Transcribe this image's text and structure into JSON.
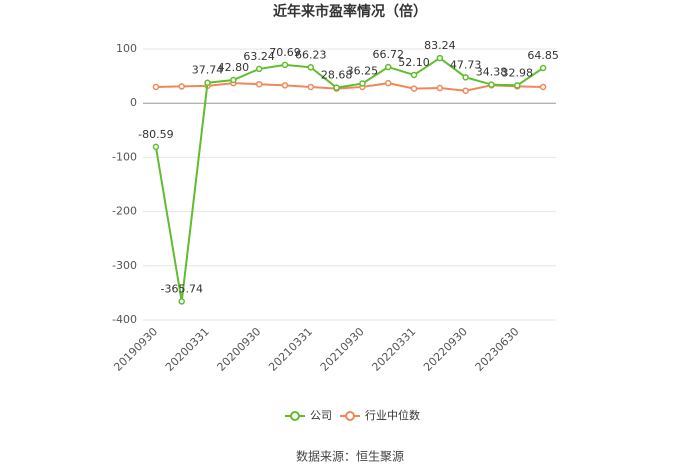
{
  "chart_data": {
    "type": "line",
    "title": "近年来市盈率情况（倍）",
    "categories": [
      "20190930",
      null,
      "20200331",
      null,
      "20200930",
      null,
      "20210331",
      null,
      "20210930",
      null,
      "20220331",
      null,
      "20220930",
      null,
      "20230630",
      null
    ],
    "series": [
      {
        "name": "公司",
        "color": "#5fbd2e",
        "values": [
          -80.59,
          -365.74,
          37.74,
          42.8,
          63.24,
          70.69,
          66.23,
          28.68,
          36.25,
          66.72,
          52.1,
          83.24,
          47.73,
          34.38,
          32.98,
          64.85
        ],
        "value_labels": [
          "-80.59",
          "-365.74",
          "37.74",
          "42.80",
          "63.24",
          "70.69",
          "66.23",
          "28.68",
          "36.25",
          "66.72",
          "52.10",
          "83.24",
          "47.73",
          "34.38",
          "32.98",
          "64.85"
        ]
      },
      {
        "name": "行业中位数",
        "color": "#f0875a",
        "values": [
          30,
          31,
          32,
          37,
          35,
          33,
          30,
          27,
          30,
          37,
          27,
          28,
          23,
          33,
          31,
          30
        ]
      }
    ],
    "ylim": [
      -400,
      100
    ],
    "yticks": [
      -400,
      -300,
      -200,
      -100,
      0,
      100
    ],
    "grid": true,
    "source": "数据来源：恒生聚源"
  }
}
